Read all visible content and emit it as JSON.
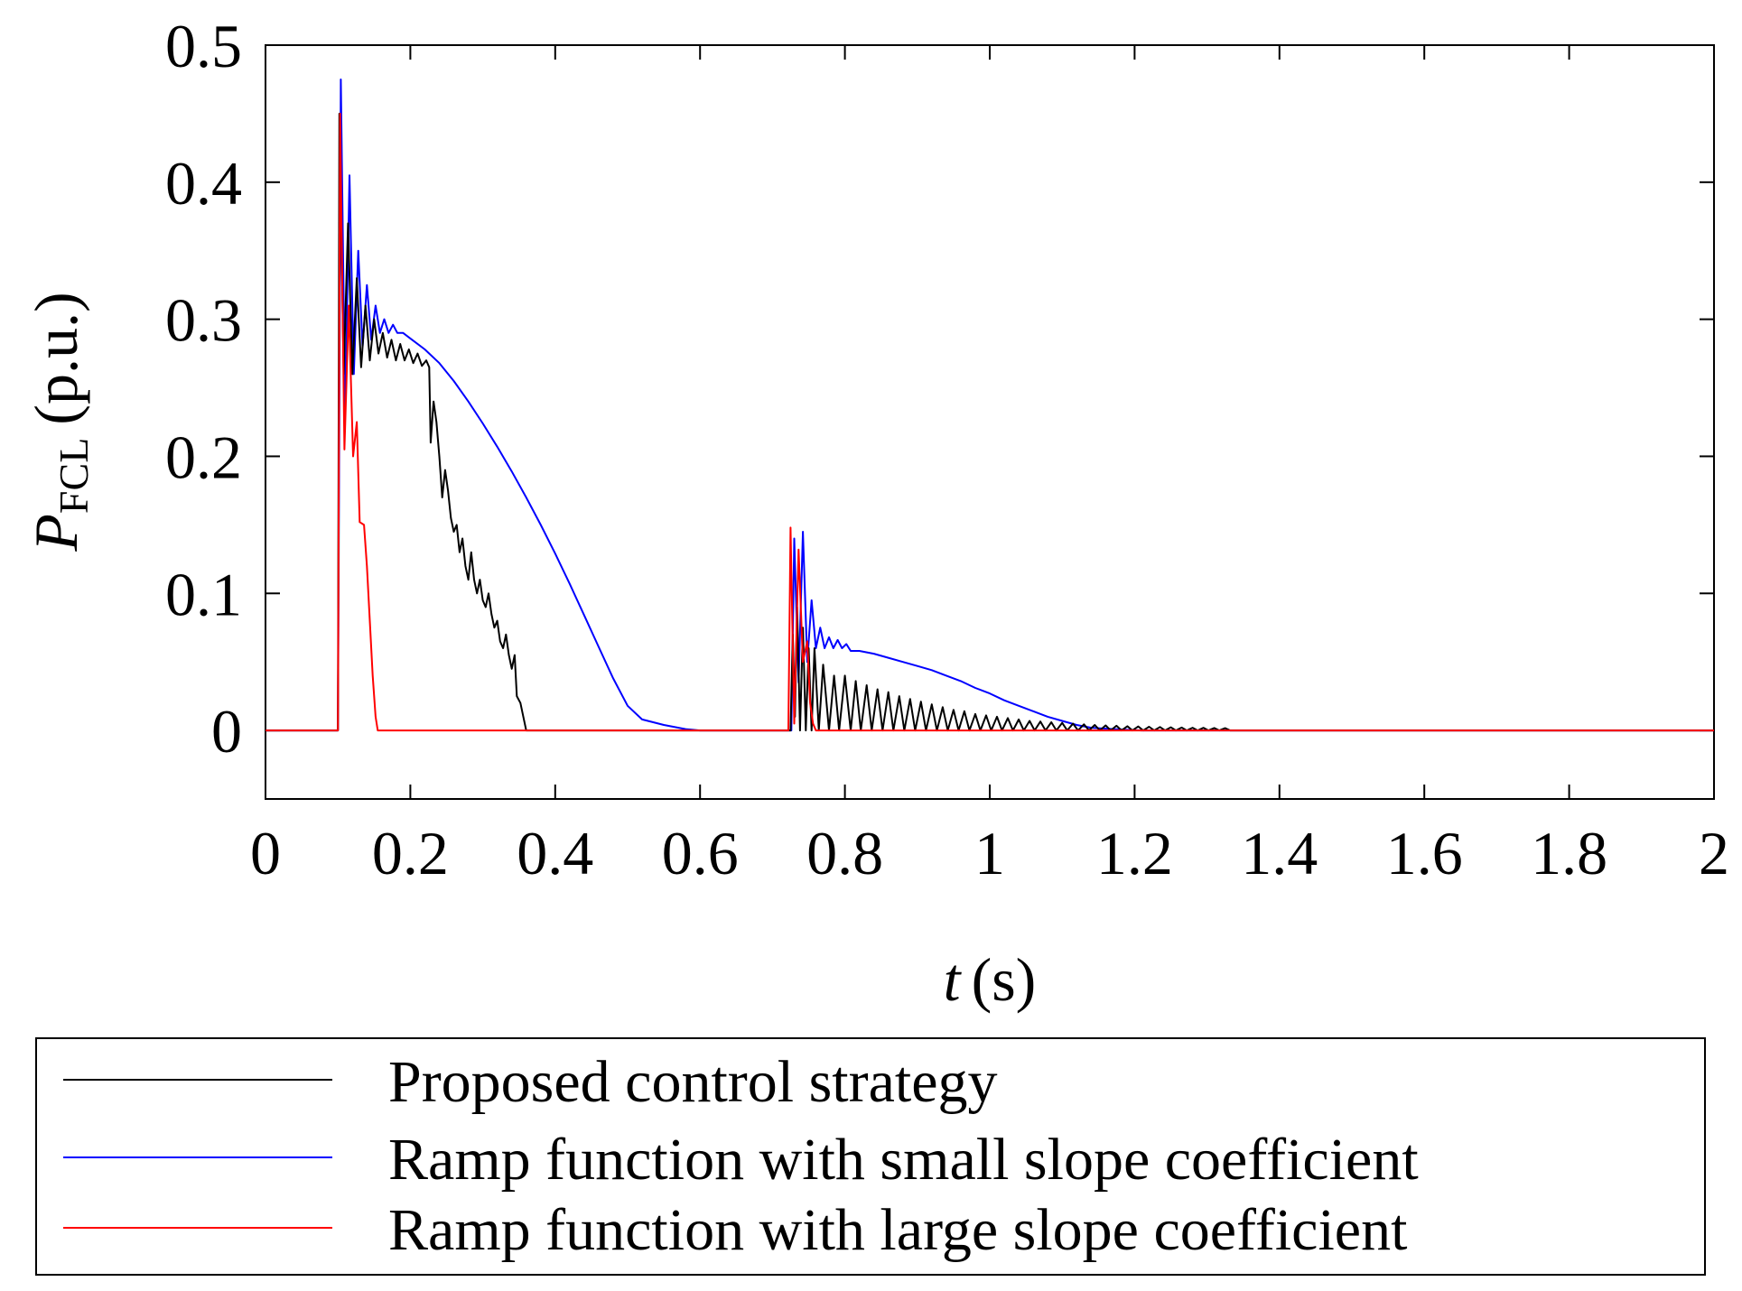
{
  "chart_data": {
    "type": "line",
    "xlabel": {
      "var": "t",
      "unit": "(s)"
    },
    "ylabel": {
      "var": "P",
      "sub": "FCL",
      "unit": "(p.u.)"
    },
    "xlim": [
      0,
      2
    ],
    "ylim": [
      -0.05,
      0.5
    ],
    "xticks": [
      0,
      0.2,
      0.4,
      0.6,
      0.8,
      1,
      1.2,
      1.4,
      1.6,
      1.8,
      2
    ],
    "xtick_labels": [
      "0",
      "0.2",
      "0.4",
      "0.6",
      "0.8",
      "1",
      "1.2",
      "1.4",
      "1.6",
      "1.8",
      "2"
    ],
    "yticks": [
      0,
      0.1,
      0.2,
      0.3,
      0.4,
      0.5
    ],
    "ytick_labels": [
      "0",
      "0.1",
      "0.2",
      "0.3",
      "0.4",
      "0.5"
    ],
    "grid": false,
    "legend_position": "bottom",
    "series": [
      {
        "name": "Proposed control strategy",
        "color": "#000000",
        "points": [
          [
            0,
            0
          ],
          [
            0.1,
            0
          ],
          [
            0.102,
            0.45
          ],
          [
            0.108,
            0.26
          ],
          [
            0.114,
            0.37
          ],
          [
            0.12,
            0.26
          ],
          [
            0.126,
            0.33
          ],
          [
            0.132,
            0.265
          ],
          [
            0.138,
            0.31
          ],
          [
            0.144,
            0.27
          ],
          [
            0.15,
            0.3
          ],
          [
            0.156,
            0.275
          ],
          [
            0.162,
            0.29
          ],
          [
            0.168,
            0.272
          ],
          [
            0.174,
            0.285
          ],
          [
            0.18,
            0.27
          ],
          [
            0.186,
            0.282
          ],
          [
            0.192,
            0.27
          ],
          [
            0.198,
            0.278
          ],
          [
            0.204,
            0.268
          ],
          [
            0.21,
            0.275
          ],
          [
            0.216,
            0.266
          ],
          [
            0.222,
            0.27
          ],
          [
            0.226,
            0.265
          ],
          [
            0.228,
            0.21
          ],
          [
            0.232,
            0.24
          ],
          [
            0.236,
            0.225
          ],
          [
            0.24,
            0.2
          ],
          [
            0.244,
            0.17
          ],
          [
            0.248,
            0.19
          ],
          [
            0.252,
            0.175
          ],
          [
            0.256,
            0.155
          ],
          [
            0.26,
            0.145
          ],
          [
            0.264,
            0.15
          ],
          [
            0.268,
            0.13
          ],
          [
            0.272,
            0.14
          ],
          [
            0.276,
            0.12
          ],
          [
            0.28,
            0.11
          ],
          [
            0.284,
            0.13
          ],
          [
            0.288,
            0.11
          ],
          [
            0.292,
            0.1
          ],
          [
            0.296,
            0.11
          ],
          [
            0.3,
            0.095
          ],
          [
            0.304,
            0.09
          ],
          [
            0.308,
            0.1
          ],
          [
            0.312,
            0.085
          ],
          [
            0.316,
            0.075
          ],
          [
            0.32,
            0.08
          ],
          [
            0.324,
            0.065
          ],
          [
            0.328,
            0.06
          ],
          [
            0.332,
            0.07
          ],
          [
            0.336,
            0.055
          ],
          [
            0.34,
            0.045
          ],
          [
            0.344,
            0.055
          ],
          [
            0.347,
            0.025
          ],
          [
            0.352,
            0.02
          ],
          [
            0.356,
            0.01
          ],
          [
            0.36,
            0
          ],
          [
            0.725,
            0
          ],
          [
            0.728,
            0.07
          ],
          [
            0.731,
            0.01
          ],
          [
            0.734,
            0.09
          ],
          [
            0.738,
            0.0
          ],
          [
            0.742,
            0.075
          ],
          [
            0.746,
            0.0
          ],
          [
            0.75,
            0.06
          ],
          [
            0.754,
            0.0
          ],
          [
            0.758,
            0.06
          ],
          [
            0.764,
            0.0
          ],
          [
            0.77,
            0.048
          ],
          [
            0.778,
            0.0
          ],
          [
            0.785,
            0.04
          ],
          [
            0.792,
            0.0
          ],
          [
            0.8,
            0.04
          ],
          [
            0.808,
            0.0
          ],
          [
            0.815,
            0.036
          ],
          [
            0.822,
            0.0
          ],
          [
            0.83,
            0.033
          ],
          [
            0.837,
            0.0
          ],
          [
            0.845,
            0.03
          ],
          [
            0.852,
            0.0
          ],
          [
            0.86,
            0.028
          ],
          [
            0.867,
            0.0
          ],
          [
            0.875,
            0.025
          ],
          [
            0.882,
            0.0
          ],
          [
            0.89,
            0.023
          ],
          [
            0.897,
            0.0
          ],
          [
            0.905,
            0.021
          ],
          [
            0.912,
            0.0
          ],
          [
            0.92,
            0.019
          ],
          [
            0.927,
            0.0
          ],
          [
            0.935,
            0.017
          ],
          [
            0.942,
            0.0
          ],
          [
            0.95,
            0.015
          ],
          [
            0.957,
            0.0
          ],
          [
            0.965,
            0.014
          ],
          [
            0.972,
            0.0
          ],
          [
            0.98,
            0.012
          ],
          [
            0.987,
            0.0
          ],
          [
            0.995,
            0.011
          ],
          [
            1.002,
            0.0
          ],
          [
            1.01,
            0.01
          ],
          [
            1.017,
            0.0
          ],
          [
            1.025,
            0.009
          ],
          [
            1.032,
            0.0
          ],
          [
            1.04,
            0.008
          ],
          [
            1.047,
            0.0
          ],
          [
            1.055,
            0.007
          ],
          [
            1.062,
            0.0
          ],
          [
            1.07,
            0.0065
          ],
          [
            1.077,
            0.0
          ],
          [
            1.085,
            0.006
          ],
          [
            1.092,
            0.0
          ],
          [
            1.1,
            0.0055
          ],
          [
            1.107,
            0.0
          ],
          [
            1.115,
            0.005
          ],
          [
            1.122,
            0.0
          ],
          [
            1.13,
            0.0045
          ],
          [
            1.137,
            0.0
          ],
          [
            1.145,
            0.004
          ],
          [
            1.152,
            0.0
          ],
          [
            1.16,
            0.0037
          ],
          [
            1.167,
            0.0
          ],
          [
            1.175,
            0.0034
          ],
          [
            1.182,
            0.0
          ],
          [
            1.19,
            0.0031
          ],
          [
            1.197,
            0.0
          ],
          [
            1.205,
            0.0029
          ],
          [
            1.212,
            0.0
          ],
          [
            1.22,
            0.0027
          ],
          [
            1.227,
            0.0
          ],
          [
            1.235,
            0.0025
          ],
          [
            1.242,
            0.0
          ],
          [
            1.25,
            0.0023
          ],
          [
            1.257,
            0.0
          ],
          [
            1.265,
            0.0021
          ],
          [
            1.272,
            0.0
          ],
          [
            1.28,
            0.002
          ],
          [
            1.287,
            0.0
          ],
          [
            1.295,
            0.0019
          ],
          [
            1.302,
            0.0
          ],
          [
            1.31,
            0.0018
          ],
          [
            1.317,
            0.0
          ],
          [
            1.325,
            0.0017
          ],
          [
            1.332,
            0.0
          ],
          [
            1.34,
            0
          ],
          [
            2,
            0
          ]
        ]
      },
      {
        "name": "Ramp function with small slope coefficient",
        "color": "#0000ff",
        "points": [
          [
            0,
            0
          ],
          [
            0.1,
            0
          ],
          [
            0.104,
            0.475
          ],
          [
            0.11,
            0.23
          ],
          [
            0.116,
            0.405
          ],
          [
            0.122,
            0.26
          ],
          [
            0.128,
            0.35
          ],
          [
            0.134,
            0.28
          ],
          [
            0.14,
            0.325
          ],
          [
            0.146,
            0.285
          ],
          [
            0.152,
            0.31
          ],
          [
            0.158,
            0.29
          ],
          [
            0.164,
            0.3
          ],
          [
            0.17,
            0.29
          ],
          [
            0.176,
            0.296
          ],
          [
            0.182,
            0.29
          ],
          [
            0.19,
            0.29
          ],
          [
            0.2,
            0.286
          ],
          [
            0.22,
            0.278
          ],
          [
            0.24,
            0.268
          ],
          [
            0.26,
            0.255
          ],
          [
            0.28,
            0.24
          ],
          [
            0.3,
            0.224
          ],
          [
            0.32,
            0.207
          ],
          [
            0.34,
            0.189
          ],
          [
            0.36,
            0.17
          ],
          [
            0.38,
            0.15
          ],
          [
            0.4,
            0.129
          ],
          [
            0.42,
            0.107
          ],
          [
            0.44,
            0.084
          ],
          [
            0.46,
            0.061
          ],
          [
            0.48,
            0.038
          ],
          [
            0.5,
            0.018
          ],
          [
            0.52,
            0.008
          ],
          [
            0.55,
            0.004
          ],
          [
            0.58,
            0.001
          ],
          [
            0.6,
            0
          ],
          [
            0.726,
            0
          ],
          [
            0.73,
            0.14
          ],
          [
            0.736,
            0.035
          ],
          [
            0.742,
            0.145
          ],
          [
            0.748,
            0.05
          ],
          [
            0.754,
            0.095
          ],
          [
            0.76,
            0.06
          ],
          [
            0.766,
            0.075
          ],
          [
            0.772,
            0.06
          ],
          [
            0.778,
            0.068
          ],
          [
            0.784,
            0.06
          ],
          [
            0.79,
            0.066
          ],
          [
            0.796,
            0.06
          ],
          [
            0.802,
            0.063
          ],
          [
            0.808,
            0.058
          ],
          [
            0.82,
            0.058
          ],
          [
            0.84,
            0.056
          ],
          [
            0.86,
            0.053
          ],
          [
            0.88,
            0.05
          ],
          [
            0.9,
            0.047
          ],
          [
            0.92,
            0.044
          ],
          [
            0.94,
            0.04
          ],
          [
            0.96,
            0.036
          ],
          [
            0.98,
            0.031
          ],
          [
            1.0,
            0.027
          ],
          [
            1.02,
            0.022
          ],
          [
            1.04,
            0.018
          ],
          [
            1.06,
            0.014
          ],
          [
            1.08,
            0.01
          ],
          [
            1.1,
            0.007
          ],
          [
            1.12,
            0.004
          ],
          [
            1.14,
            0.002
          ],
          [
            1.17,
            0.001
          ],
          [
            1.21,
            0
          ],
          [
            2,
            0
          ]
        ]
      },
      {
        "name": "Ramp function with large slope coefficient",
        "color": "#ff0000",
        "points": [
          [
            0,
            0
          ],
          [
            0.1,
            0
          ],
          [
            0.103,
            0.45
          ],
          [
            0.109,
            0.205
          ],
          [
            0.115,
            0.31
          ],
          [
            0.121,
            0.2
          ],
          [
            0.126,
            0.225
          ],
          [
            0.13,
            0.152
          ],
          [
            0.136,
            0.15
          ],
          [
            0.14,
            0.12
          ],
          [
            0.144,
            0.08
          ],
          [
            0.148,
            0.04
          ],
          [
            0.152,
            0.01
          ],
          [
            0.155,
            0
          ],
          [
            0.722,
            0
          ],
          [
            0.725,
            0.148
          ],
          [
            0.73,
            0.005
          ],
          [
            0.736,
            0.132
          ],
          [
            0.742,
            0.05
          ],
          [
            0.748,
            0.065
          ],
          [
            0.752,
            0.02
          ],
          [
            0.756,
            0.005
          ],
          [
            0.76,
            0
          ],
          [
            2,
            0
          ]
        ]
      }
    ]
  }
}
